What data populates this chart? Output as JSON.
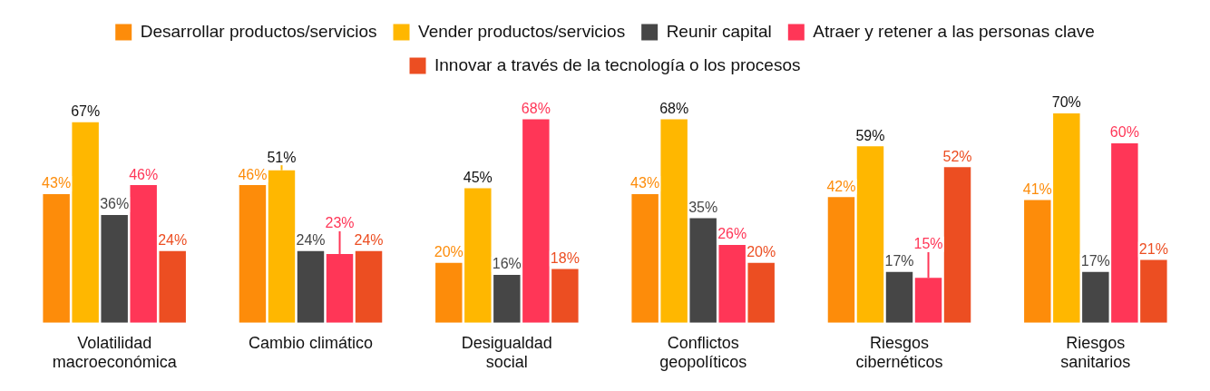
{
  "chart_data": {
    "type": "bar",
    "categories": [
      "Volatilidad macroeconómica",
      "Cambio climático",
      "Desigualdad social",
      "Conflictos geopolíticos",
      "Riesgos cibernéticos",
      "Riesgos sanitarios"
    ],
    "series": [
      {
        "name": "Desarrollar productos/servicios",
        "color": "#fd8c0a",
        "values": [
          43,
          46,
          20,
          43,
          42,
          41
        ],
        "value_labels": [
          "43%",
          "46%",
          "20%",
          "43%",
          "42%",
          "41%"
        ]
      },
      {
        "name": "Vender productos/servicios",
        "color": "#ffb700",
        "values": [
          67,
          51,
          45,
          68,
          59,
          70
        ],
        "value_labels": [
          "67%",
          "51%",
          "45%",
          "68%",
          "59%",
          "70%"
        ]
      },
      {
        "name": "Reunir capital",
        "color": "#464646",
        "values": [
          36,
          24,
          16,
          35,
          17,
          17
        ],
        "value_labels": [
          "36%",
          "24%",
          "16%",
          "35%",
          "17%",
          "17%"
        ]
      },
      {
        "name": "Atraer y retener a las personas clave",
        "color": "#ff3657",
        "values": [
          46,
          23,
          68,
          26,
          15,
          60
        ],
        "value_labels": [
          "46%",
          "23%",
          "68%",
          "26%",
          "15%",
          "60%"
        ]
      },
      {
        "name": "Innovar a través de la tecnología o los procesos",
        "color": "#ec4e22",
        "values": [
          24,
          24,
          18,
          20,
          52,
          21
        ],
        "value_labels": [
          "24%",
          "24%",
          "18%",
          "20%",
          "52%",
          "21%"
        ]
      }
    ],
    "legend": "top",
    "grid": false
  }
}
